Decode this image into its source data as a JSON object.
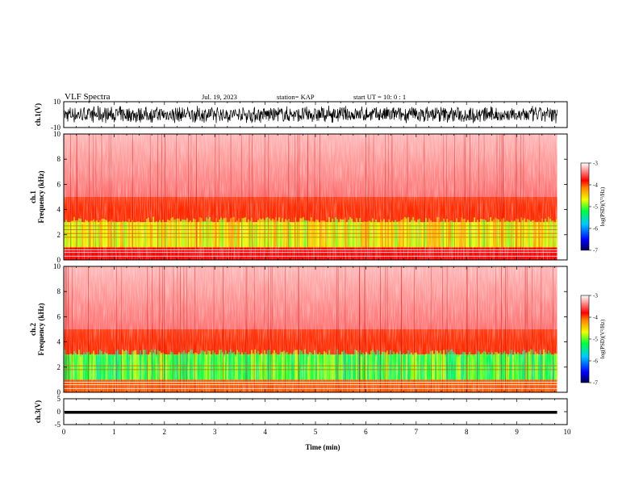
{
  "header": {
    "title": "VLF Spectra",
    "date": "Jul. 19, 2023",
    "station": "station= KAP",
    "start": "start UT =  10: 0  : 1"
  },
  "chart_data": [
    {
      "type": "line",
      "panel": "ch1-waveform",
      "ylabel": "ch.1(V)",
      "ylim": [
        -10,
        10
      ],
      "yticks": [
        "10",
        "-10"
      ],
      "xlim": [
        0,
        10
      ],
      "data_end_min": 9.8,
      "description_of_signal": "dense broadband waveform",
      "envelope_V": [
        -7,
        7
      ],
      "color": "#000000"
    },
    {
      "type": "heatmap",
      "panel": "ch1-spectrogram",
      "ylabel": "ch.1\nFrequency (kHz)",
      "ylim": [
        0,
        10
      ],
      "yticks": [
        "0",
        "2",
        "4",
        "6",
        "8",
        "10"
      ],
      "xlim": [
        0,
        10
      ],
      "data_end_min": 9.8,
      "bands_kHz": [
        {
          "from": 0,
          "to": 1.0,
          "level": -3.8
        },
        {
          "from": 1.0,
          "to": 3.0,
          "level": -4.6
        },
        {
          "from": 3.0,
          "to": 5.0,
          "level": -3.9
        },
        {
          "from": 5.0,
          "to": 10,
          "level": -3.5
        }
      ],
      "lines_kHz": [
        0.3,
        0.6,
        0.8,
        1.8,
        2.1,
        2.4,
        2.7
      ],
      "colorbar": {
        "label": "log(PSD)(V²/Hz)",
        "range": [
          -7,
          -3
        ],
        "ticks": [
          "-3",
          "-4",
          "-5",
          "-6",
          "-7"
        ]
      }
    },
    {
      "type": "heatmap",
      "panel": "ch2-spectrogram",
      "ylabel": "ch.2\nFrequency (kHz)",
      "ylim": [
        0,
        10
      ],
      "yticks": [
        "0",
        "2",
        "4",
        "6",
        "8",
        "10"
      ],
      "xlim": [
        0,
        10
      ],
      "data_end_min": 9.8,
      "bands_kHz": [
        {
          "from": 0,
          "to": 1.0,
          "level": -4.0
        },
        {
          "from": 1.0,
          "to": 3.0,
          "level": -5.1
        },
        {
          "from": 3.0,
          "to": 5.0,
          "level": -3.9
        },
        {
          "from": 5.0,
          "to": 10,
          "level": -3.5
        }
      ],
      "lines_kHz": [
        0.3,
        0.6,
        0.8,
        1.8,
        2.1
      ],
      "colorbar": {
        "label": "log(PSD)(V²/Hz)",
        "range": [
          -7,
          -3
        ],
        "ticks": [
          "-3",
          "-4",
          "-5",
          "-6",
          "-7"
        ]
      }
    },
    {
      "type": "line",
      "panel": "ch3-waveform",
      "ylabel": "ch.3(V)",
      "ylim": [
        -5,
        5
      ],
      "yticks": [
        "5",
        "0",
        "-5"
      ],
      "xlim": [
        0,
        10
      ],
      "data_end_min": 9.8,
      "envelope_V": [
        -0.8,
        0.3
      ],
      "color": "#000000"
    }
  ],
  "xaxis": {
    "label": "Time (min)",
    "ticks": [
      "0",
      "1",
      "2",
      "3",
      "4",
      "5",
      "6",
      "7",
      "8",
      "9",
      "10"
    ]
  },
  "colors": {
    "colormap": [
      "#000060",
      "#0000ff",
      "#00c0ff",
      "#00ff40",
      "#f0ff00",
      "#ff8000",
      "#ff0000",
      "#ffffff"
    ]
  }
}
